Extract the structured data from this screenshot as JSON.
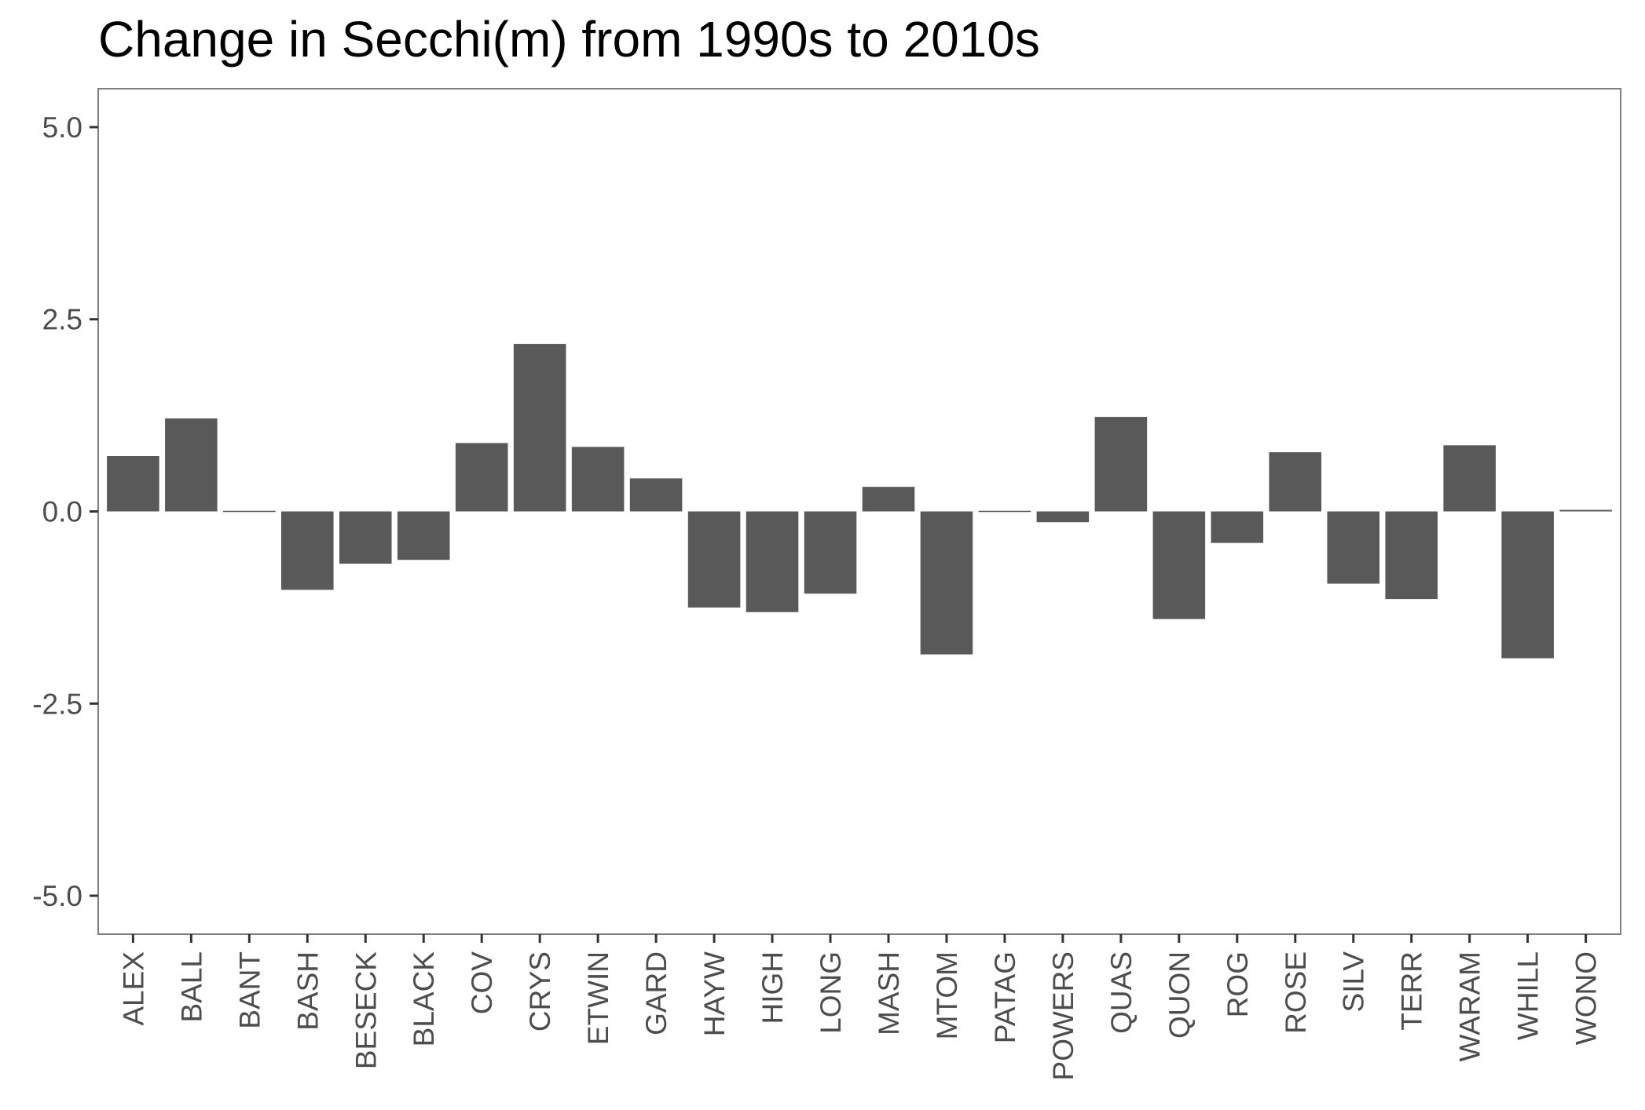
{
  "chart_data": {
    "type": "bar",
    "title": "Change in Secchi(m) from 1990s to 2010s",
    "xlabel": "",
    "ylabel": "",
    "ylim": [
      -5.5,
      5.5
    ],
    "yticks": [
      5.0,
      2.5,
      0.0,
      -2.5,
      -5.0
    ],
    "ytick_labels": [
      "5.0",
      "2.5",
      "0.0",
      "-2.5",
      "-5.0"
    ],
    "categories": [
      "ALEX",
      "BALL",
      "BANT",
      "BASH",
      "BESECK",
      "BLACK",
      "COV",
      "CRYS",
      "ETWIN",
      "GARD",
      "HAYW",
      "HIGH",
      "LONG",
      "MASH",
      "MTOM",
      "PATAG",
      "POWERS",
      "QUAS",
      "QUON",
      "ROG",
      "ROSE",
      "SILV",
      "TERR",
      "WARAM",
      "WHILL",
      "WONO"
    ],
    "values": [
      0.72,
      1.21,
      0.01,
      -1.02,
      -0.68,
      -0.63,
      0.89,
      2.18,
      0.84,
      0.43,
      -1.25,
      -1.31,
      -1.07,
      0.32,
      -1.86,
      0.0,
      -0.14,
      1.23,
      -1.4,
      -0.41,
      0.77,
      -0.94,
      -1.14,
      0.86,
      -1.91,
      0.02
    ],
    "bar_color": "#595959",
    "grid": false,
    "legend": "none"
  }
}
